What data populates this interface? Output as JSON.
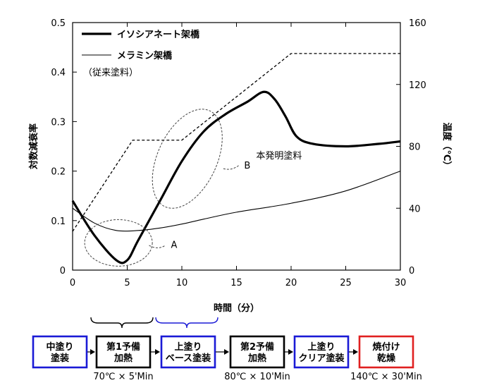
{
  "chart_data": {
    "type": "line",
    "xlabel": "時間（分）",
    "ylabel_left": "対数減衰率",
    "ylabel_right": "温度（℃）",
    "xlim": [
      0,
      30
    ],
    "ylim_left": [
      0,
      0.5
    ],
    "ylim_right": [
      0,
      160
    ],
    "x_ticks": [
      "0",
      "5",
      "10",
      "15",
      "20",
      "25",
      "30"
    ],
    "y_ticks_left": [
      "0",
      "0.1",
      "0.2",
      "0.3",
      "0.4",
      "0.5"
    ],
    "y_ticks_right": [
      "0",
      "40",
      "80",
      "120",
      "160"
    ],
    "legend_position": "top-left",
    "series": [
      {
        "name": "イソシアネート架橋",
        "style": "thick",
        "axis": "left",
        "x": [
          0,
          2,
          4,
          5,
          6,
          8,
          10,
          12,
          14,
          16,
          17.5,
          18.5,
          19.5,
          20.5,
          22,
          25,
          28,
          30
        ],
        "y": [
          0.14,
          0.07,
          0.02,
          0.02,
          0.06,
          0.14,
          0.22,
          0.28,
          0.315,
          0.34,
          0.36,
          0.345,
          0.31,
          0.27,
          0.255,
          0.25,
          0.255,
          0.26
        ]
      },
      {
        "name": "メラミン架橋",
        "name_note": "（従来塗料）",
        "style": "thin",
        "axis": "left",
        "x": [
          0,
          2,
          4,
          6,
          8,
          10,
          12,
          15,
          20,
          25,
          30
        ],
        "y": [
          0.125,
          0.095,
          0.08,
          0.08,
          0.085,
          0.093,
          0.103,
          0.117,
          0.135,
          0.16,
          0.2
        ]
      },
      {
        "name": "温度",
        "style": "dashed",
        "axis": "right",
        "x": [
          0,
          5.5,
          10,
          20,
          30
        ],
        "y": [
          25,
          84,
          84,
          140,
          140
        ]
      }
    ],
    "annotations": [
      {
        "label": "A",
        "target": "isocyanate_minimum"
      },
      {
        "label": "B",
        "text": "本発明塗料",
        "target": "isocyanate_rise"
      }
    ]
  },
  "process": {
    "steps": [
      {
        "line1": "中塗り",
        "line2": "塗装",
        "border": "#1a1ad6"
      },
      {
        "line1": "第1予備",
        "line2": "加熱",
        "border": "#000000"
      },
      {
        "line1": "上塗り",
        "line2": "ベース塗装",
        "border": "#1a1ad6"
      },
      {
        "line1": "第2予備",
        "line2": "加熱",
        "border": "#000000"
      },
      {
        "line1": "上塗り",
        "line2": "クリア塗装",
        "border": "#1a1ad6"
      },
      {
        "line1": "焼付け",
        "line2": "乾燥",
        "border": "#e02020"
      }
    ],
    "conditions": [
      {
        "after_step": 1,
        "text": "70℃ × 5'Min"
      },
      {
        "after_step": 3,
        "text": "80℃ × 10'Min"
      },
      {
        "after_step": 5,
        "text": "140℃ × 30'Min"
      }
    ],
    "brace_colors": [
      "#000000",
      "#1a1ad6"
    ]
  }
}
